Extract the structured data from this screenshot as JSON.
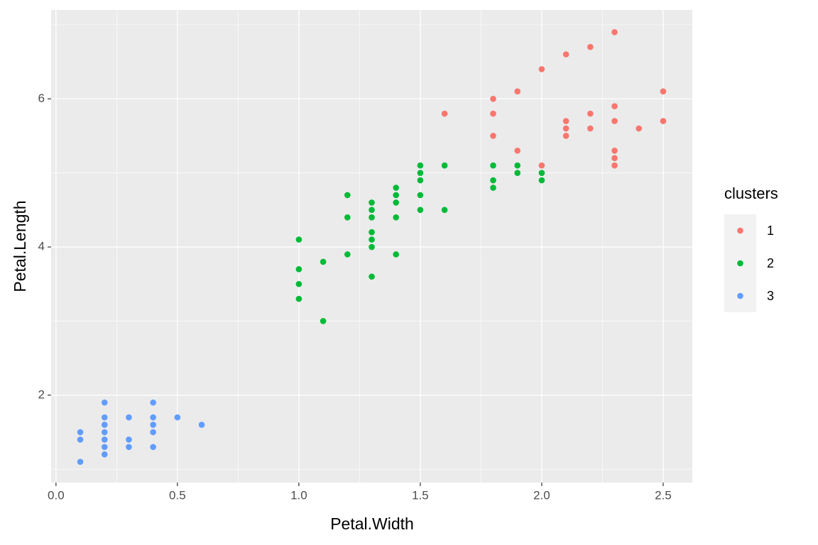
{
  "chart_data": {
    "type": "scatter",
    "x_label": "Petal.Width",
    "y_label": "Petal.Length",
    "legend_title": "clusters",
    "xlim": [
      -0.02,
      2.62
    ],
    "ylim": [
      0.82,
      7.2
    ],
    "xticks": [
      {
        "value": 0,
        "label": "0.0"
      },
      0.5,
      {
        "value": 1,
        "label": "1.0"
      },
      1.5,
      {
        "value": 2,
        "label": "2.0"
      },
      2.5
    ],
    "yticks": [
      2,
      4,
      6
    ],
    "x_minor_ticks": [
      0.25,
      0.75,
      1.25,
      1.75,
      2.25
    ],
    "y_minor_ticks": [
      1,
      3,
      5,
      7
    ],
    "grid": true,
    "legend": "right",
    "series": [
      {
        "name": "1",
        "color": "#F8766D",
        "x": [
          2.3,
          2.2,
          2.1,
          2.0,
          1.9,
          2.5,
          1.8,
          2.3,
          1.6,
          1.8,
          2.2,
          2.1,
          2.3,
          2.5,
          2.1,
          2.2,
          2.4,
          1.8,
          2.1,
          1.9,
          2.3,
          2.3,
          2.3,
          2.0
        ],
        "values": [
          6.9,
          6.7,
          6.6,
          6.4,
          6.1,
          6.1,
          6.0,
          5.9,
          5.8,
          5.8,
          5.8,
          5.7,
          5.7,
          5.7,
          5.6,
          5.6,
          5.6,
          5.5,
          5.5,
          5.3,
          5.3,
          5.2,
          5.1,
          5.1
        ]
      },
      {
        "name": "2",
        "color": "#00BA38",
        "x": [
          1.0,
          1.0,
          1.0,
          1.0,
          1.1,
          1.1,
          1.2,
          1.2,
          1.2,
          1.3,
          1.3,
          1.3,
          1.3,
          1.3,
          1.3,
          1.3,
          1.4,
          1.4,
          1.4,
          1.4,
          1.4,
          1.5,
          1.5,
          1.5,
          1.5,
          1.5,
          1.6,
          1.6,
          1.8,
          1.8,
          1.8,
          1.9,
          1.9,
          2.0,
          2.0
        ],
        "values": [
          4.1,
          3.7,
          3.5,
          3.3,
          3.8,
          3.0,
          4.7,
          4.4,
          3.9,
          4.6,
          4.5,
          4.4,
          4.2,
          4.1,
          4.0,
          3.6,
          4.8,
          4.7,
          4.6,
          4.4,
          3.9,
          5.1,
          5.0,
          4.9,
          4.7,
          4.5,
          5.1,
          4.5,
          5.1,
          4.9,
          4.8,
          5.1,
          5.0,
          5.0,
          4.9
        ]
      },
      {
        "name": "3",
        "color": "#619CFF",
        "x": [
          0.1,
          0.1,
          0.1,
          0.2,
          0.2,
          0.2,
          0.2,
          0.2,
          0.2,
          0.2,
          0.3,
          0.3,
          0.3,
          0.4,
          0.4,
          0.4,
          0.4,
          0.4,
          0.5,
          0.6
        ],
        "values": [
          1.5,
          1.4,
          1.1,
          1.9,
          1.7,
          1.6,
          1.5,
          1.4,
          1.3,
          1.2,
          1.7,
          1.4,
          1.3,
          1.9,
          1.7,
          1.6,
          1.5,
          1.3,
          1.7,
          1.6
        ]
      }
    ]
  }
}
